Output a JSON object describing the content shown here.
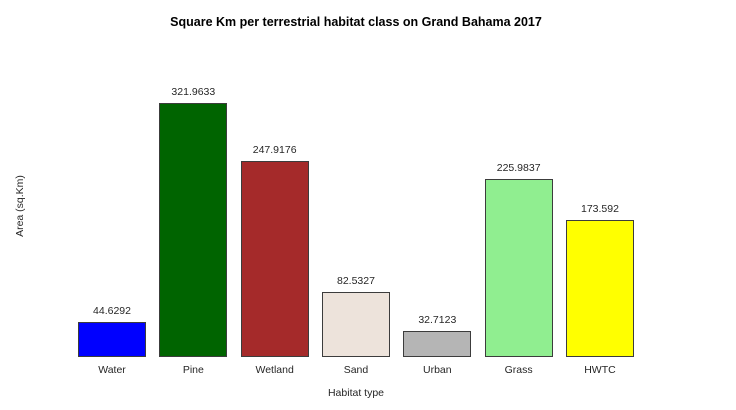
{
  "chart_data": {
    "type": "bar",
    "title": "Square Km per terrestrial habitat class on Grand Bahama 2017",
    "xlabel": "Habitat type",
    "ylabel": "Area (sq.Km)",
    "categories": [
      "Water",
      "Pine",
      "Wetland",
      "Sand",
      "Urban",
      "Grass",
      "HWTC"
    ],
    "values": [
      44.6292,
      321.9633,
      247.9176,
      82.5327,
      32.7123,
      225.9837,
      173.592
    ],
    "bar_colors": [
      "#0000ff",
      "#006400",
      "#a52a2a",
      "#ede3db",
      "#b5b5b5",
      "#90ee90",
      "#ffff00"
    ],
    "bar_border_color": "#3c3c3c",
    "ylim": [
      0,
      330
    ],
    "grid": false,
    "legend": "none",
    "value_labels_shown": true,
    "background_color": "#ffffff",
    "text_color": "#262626"
  }
}
